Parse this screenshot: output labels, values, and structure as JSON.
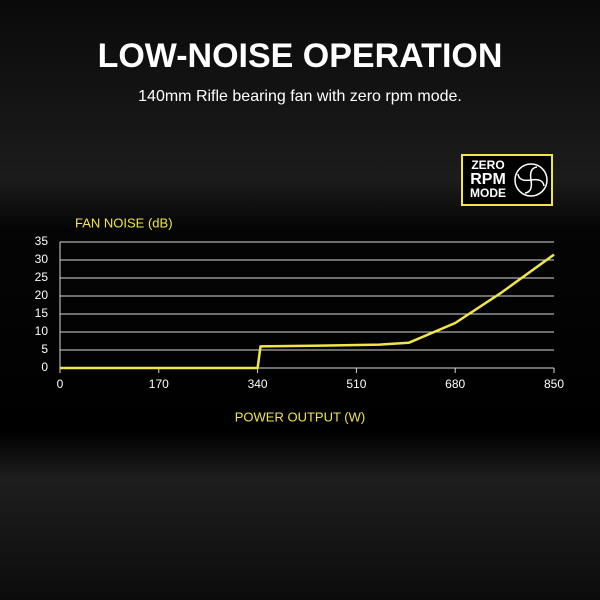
{
  "chart_data": {
    "type": "line",
    "title": "LOW-NOISE OPERATION",
    "subtitle": "140mm Rifle bearing fan with zero rpm mode.",
    "badge": [
      "ZERO",
      "RPM",
      "MODE"
    ],
    "y_label": "FAN NOISE (dB)",
    "x_label": "POWER OUTPUT (W)",
    "x": [
      0,
      340,
      345,
      450,
      550,
      600,
      680,
      760,
      850
    ],
    "values": [
      0,
      0,
      6,
      6.2,
      6.5,
      7,
      12.5,
      21,
      31.5
    ],
    "color": "#f0e64a",
    "xlim": [
      0,
      850
    ],
    "xticks": [
      0,
      170,
      340,
      510,
      680,
      850
    ],
    "ylim": [
      0,
      35
    ],
    "yticks": [
      0,
      5,
      10,
      15,
      20,
      25,
      30,
      35
    ],
    "grid": true
  }
}
